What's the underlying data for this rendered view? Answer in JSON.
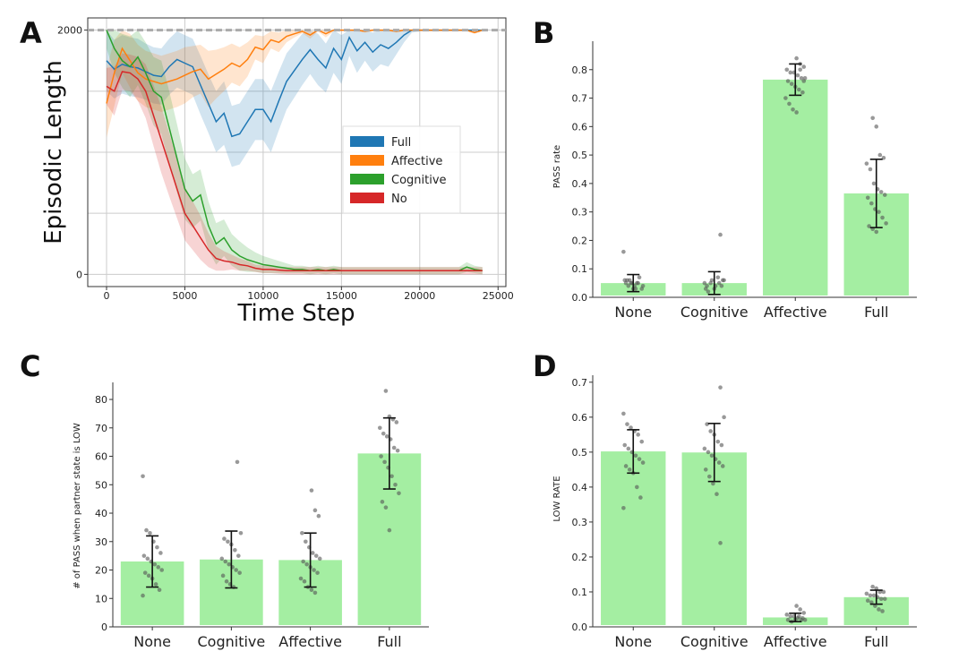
{
  "chart_data": [
    {
      "panel": "A",
      "type": "line",
      "xlabel": "Time Step",
      "ylabel": "Episodic Length",
      "xlim": [
        -1200,
        25500
      ],
      "ylim": [
        -100,
        2100
      ],
      "xticks": [
        0,
        5000,
        10000,
        15000,
        20000,
        25000
      ],
      "yticks": [
        0,
        2000
      ],
      "grid": true,
      "reference_line": 2000,
      "legend": {
        "placement": "center-right",
        "entries": [
          "Full",
          "Affective",
          "Cognitive",
          "No"
        ]
      },
      "x": [
        0,
        500,
        1000,
        1500,
        2000,
        2500,
        3000,
        3500,
        4000,
        4500,
        5000,
        5500,
        6000,
        6500,
        7000,
        7500,
        8000,
        8500,
        9000,
        9500,
        10000,
        10500,
        11000,
        11500,
        12000,
        12500,
        13000,
        13500,
        14000,
        14500,
        15000,
        15500,
        16000,
        16500,
        17000,
        17500,
        18000,
        18500,
        19000,
        19500,
        20000,
        20500,
        21000,
        21500,
        22000,
        22500,
        23000,
        23500,
        24000
      ],
      "series": [
        {
          "name": "Full",
          "color": "#1f77b4",
          "values": [
            1750,
            1680,
            1720,
            1700,
            1690,
            1660,
            1630,
            1620,
            1700,
            1760,
            1730,
            1700,
            1550,
            1400,
            1250,
            1320,
            1130,
            1150,
            1250,
            1350,
            1350,
            1250,
            1420,
            1580,
            1670,
            1760,
            1840,
            1760,
            1690,
            1850,
            1760,
            1940,
            1830,
            1900,
            1820,
            1880,
            1850,
            1900,
            1960,
            2000,
            2000,
            2000,
            2000,
            2000,
            2000,
            2000,
            2000,
            2000,
            2000
          ],
          "band": [
            250,
            240,
            240,
            240,
            240,
            230,
            230,
            230,
            230,
            230,
            230,
            230,
            240,
            240,
            250,
            260,
            250,
            250,
            250,
            250,
            250,
            250,
            240,
            230,
            220,
            210,
            200,
            210,
            200,
            200,
            200,
            150,
            180,
            150,
            160,
            160,
            150,
            100,
            60,
            20,
            10,
            10,
            10,
            10,
            10,
            10,
            10,
            10,
            10
          ]
        },
        {
          "name": "Affective",
          "color": "#ff7f0e",
          "values": [
            1400,
            1650,
            1850,
            1750,
            1650,
            1600,
            1580,
            1560,
            1580,
            1600,
            1630,
            1660,
            1680,
            1600,
            1640,
            1680,
            1730,
            1700,
            1760,
            1860,
            1840,
            1920,
            1900,
            1950,
            1970,
            1990,
            1960,
            2000,
            1970,
            2000,
            2000,
            2000,
            2000,
            1990,
            2000,
            2000,
            2000,
            1990,
            2000,
            2000,
            2000,
            2000,
            2000,
            2000,
            2000,
            2000,
            2000,
            1980,
            2000
          ],
          "band": [
            280,
            270,
            200,
            220,
            230,
            230,
            230,
            230,
            230,
            230,
            230,
            210,
            200,
            230,
            200,
            180,
            160,
            160,
            140,
            100,
            110,
            70,
            80,
            50,
            30,
            15,
            30,
            10,
            30,
            10,
            10,
            10,
            10,
            10,
            10,
            10,
            10,
            10,
            10,
            10,
            10,
            10,
            10,
            10,
            10,
            10,
            10,
            10,
            10
          ]
        },
        {
          "name": "Cognitive",
          "color": "#2ca02c",
          "values": [
            2000,
            1850,
            1750,
            1700,
            1780,
            1650,
            1500,
            1450,
            1200,
            950,
            700,
            600,
            650,
            400,
            250,
            300,
            200,
            150,
            120,
            100,
            80,
            70,
            60,
            50,
            40,
            40,
            30,
            40,
            30,
            40,
            30,
            30,
            30,
            30,
            30,
            30,
            30,
            30,
            30,
            30,
            30,
            30,
            30,
            30,
            30,
            30,
            60,
            40,
            30
          ],
          "band": [
            150,
            200,
            220,
            250,
            230,
            250,
            280,
            300,
            300,
            280,
            250,
            220,
            210,
            200,
            170,
            150,
            130,
            120,
            100,
            80,
            70,
            60,
            50,
            40,
            30,
            30,
            30,
            30,
            30,
            30,
            30,
            30,
            30,
            30,
            30,
            30,
            30,
            30,
            30,
            30,
            30,
            30,
            30,
            30,
            30,
            30,
            40,
            30,
            30
          ]
        },
        {
          "name": "No",
          "color": "#d62728",
          "values": [
            1540,
            1500,
            1660,
            1650,
            1600,
            1500,
            1300,
            1100,
            900,
            700,
            500,
            400,
            300,
            200,
            130,
            110,
            100,
            80,
            70,
            50,
            40,
            40,
            35,
            30,
            30,
            30,
            30,
            30,
            30,
            30,
            30,
            30,
            30,
            30,
            30,
            30,
            30,
            30,
            30,
            30,
            30,
            30,
            30,
            30,
            30,
            30,
            30,
            30,
            30
          ],
          "band": [
            150,
            200,
            150,
            150,
            180,
            220,
            250,
            270,
            260,
            240,
            220,
            200,
            180,
            140,
            100,
            80,
            60,
            50,
            40,
            30,
            30,
            30,
            30,
            30,
            30,
            30,
            30,
            30,
            30,
            30,
            30,
            30,
            30,
            30,
            30,
            30,
            30,
            30,
            30,
            30,
            30,
            30,
            30,
            30,
            30,
            30,
            30,
            30,
            30
          ]
        }
      ]
    },
    {
      "panel": "B",
      "type": "bar",
      "categories": [
        "None",
        "Cognitive",
        "Affective",
        "Full"
      ],
      "values": [
        0.05,
        0.05,
        0.765,
        0.365
      ],
      "errors": [
        0.03,
        0.04,
        0.055,
        0.12
      ],
      "ylabel": "PASS rate",
      "ylim": [
        0,
        0.9
      ],
      "yticks": [
        0.0,
        0.1,
        0.2,
        0.3,
        0.4,
        0.5,
        0.6,
        0.7,
        0.8
      ],
      "points": [
        [
          0.16,
          0.06,
          0.05,
          0.04,
          0.05,
          0.03,
          0.06,
          0.04,
          0.05,
          0.03,
          0.07,
          0.04,
          0.05,
          0.06,
          0.03,
          0.05
        ],
        [
          0.22,
          0.06,
          0.04,
          0.05,
          0.03,
          0.07,
          0.04,
          0.05,
          0.02,
          0.06,
          0.04,
          0.05,
          0.06,
          0.03
        ],
        [
          0.84,
          0.82,
          0.81,
          0.8,
          0.79,
          0.79,
          0.78,
          0.77,
          0.77,
          0.76,
          0.75,
          0.74,
          0.73,
          0.72,
          0.7,
          0.68,
          0.66,
          0.65,
          0.8,
          0.76
        ],
        [
          0.63,
          0.6,
          0.5,
          0.49,
          0.47,
          0.45,
          0.4,
          0.38,
          0.37,
          0.36,
          0.35,
          0.33,
          0.31,
          0.3,
          0.28,
          0.26,
          0.25,
          0.24,
          0.23
        ]
      ]
    },
    {
      "panel": "C",
      "type": "bar",
      "categories": [
        "None",
        "Cognitive",
        "Affective",
        "Full"
      ],
      "values": [
        23,
        23.7,
        23.5,
        61
      ],
      "errors": [
        9,
        10,
        9.5,
        12.5
      ],
      "ylabel": "# of PASS when partner state is LOW",
      "ylim": [
        0,
        86
      ],
      "yticks": [
        0,
        10,
        20,
        30,
        40,
        50,
        60,
        70,
        80
      ],
      "points": [
        [
          53,
          34,
          33,
          30,
          28,
          26,
          25,
          24,
          23,
          22,
          21,
          20,
          19,
          18,
          17,
          15,
          13,
          11
        ],
        [
          58,
          33,
          31,
          30,
          29,
          27,
          25,
          24,
          23,
          22,
          21,
          20,
          19,
          18,
          16,
          15,
          14
        ],
        [
          48,
          41,
          39,
          33,
          30,
          28,
          26,
          25,
          24,
          23,
          22,
          21,
          20,
          19,
          17,
          16,
          14,
          13,
          12
        ],
        [
          83,
          74,
          73,
          72,
          70,
          68,
          67,
          66,
          63,
          62,
          60,
          58,
          56,
          53,
          50,
          47,
          44,
          42,
          34
        ]
      ]
    },
    {
      "panel": "D",
      "type": "bar",
      "categories": [
        "None",
        "Cognitive",
        "Affective",
        "Full"
      ],
      "values": [
        0.502,
        0.499,
        0.027,
        0.085
      ],
      "errors": [
        0.062,
        0.083,
        0.012,
        0.02
      ],
      "ylabel": "LOW RATE",
      "ylim": [
        0,
        0.72
      ],
      "yticks": [
        0.0,
        0.1,
        0.2,
        0.3,
        0.4,
        0.5,
        0.6,
        0.7
      ],
      "points": [
        [
          0.61,
          0.58,
          0.57,
          0.56,
          0.55,
          0.53,
          0.52,
          0.51,
          0.5,
          0.49,
          0.48,
          0.47,
          0.46,
          0.45,
          0.44,
          0.4,
          0.37,
          0.34
        ],
        [
          0.685,
          0.6,
          0.58,
          0.56,
          0.55,
          0.53,
          0.52,
          0.51,
          0.5,
          0.49,
          0.48,
          0.47,
          0.46,
          0.45,
          0.43,
          0.41,
          0.38,
          0.24
        ],
        [
          0.06,
          0.05,
          0.04,
          0.035,
          0.03,
          0.03,
          0.025,
          0.02,
          0.02,
          0.02,
          0.015,
          0.02,
          0.03,
          0.025
        ],
        [
          0.115,
          0.11,
          0.1,
          0.1,
          0.095,
          0.09,
          0.09,
          0.085,
          0.08,
          0.08,
          0.075,
          0.07,
          0.06,
          0.05,
          0.045
        ]
      ]
    }
  ],
  "panel_labels": [
    "A",
    "B",
    "C",
    "D"
  ],
  "colors": {
    "bar": "#a4eea2",
    "grid": "#cccccc",
    "reference": "#aaaaaa",
    "point": "#555555"
  }
}
